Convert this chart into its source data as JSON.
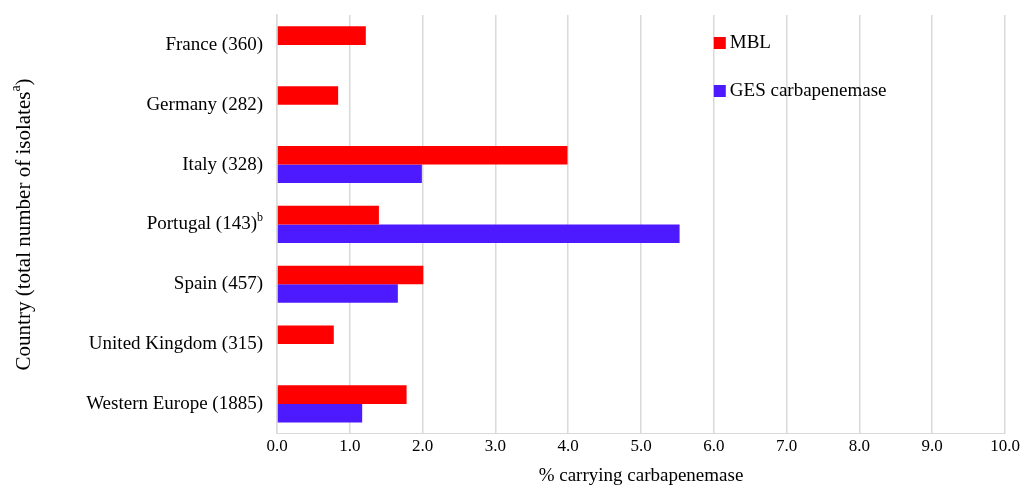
{
  "chart_data": {
    "type": "bar",
    "orientation": "horizontal",
    "xlabel": "% carrying carbapenemase",
    "ylabel": "Country (total number of isolates$^{a}$)",
    "categories": [
      "France (360)",
      "Germany (282)",
      "Italy (328)",
      "Portugal (143)$^{b}$",
      "Spain (457)",
      "United Kingdom (315)",
      "Western Europe (1885)"
    ],
    "series": [
      {
        "name": "MBL",
        "color": "#ff0000",
        "values": [
          1.22,
          0.84,
          3.99,
          1.4,
          2.01,
          0.78,
          1.78
        ]
      },
      {
        "name": "GES carbapenemase",
        "color": "#4d19ff",
        "values": [
          null,
          null,
          1.99,
          5.53,
          1.66,
          null,
          1.17
        ]
      }
    ],
    "xlim": [
      0,
      10
    ],
    "xticks": [
      {
        "value": 0,
        "label": "0.0"
      },
      {
        "value": 1,
        "label": "1.0"
      },
      {
        "value": 2,
        "label": "2.0"
      },
      {
        "value": 3,
        "label": "3.0"
      },
      {
        "value": 4,
        "label": "4.0"
      },
      {
        "value": 5,
        "label": "5.0"
      },
      {
        "value": 6,
        "label": "6.0"
      },
      {
        "value": 7,
        "label": "7.0"
      },
      {
        "value": 8,
        "label": "8.0"
      },
      {
        "value": 9,
        "label": "9.0"
      },
      {
        "value": 10,
        "label": "10.0"
      }
    ],
    "grid": "x",
    "legend": "top right"
  }
}
